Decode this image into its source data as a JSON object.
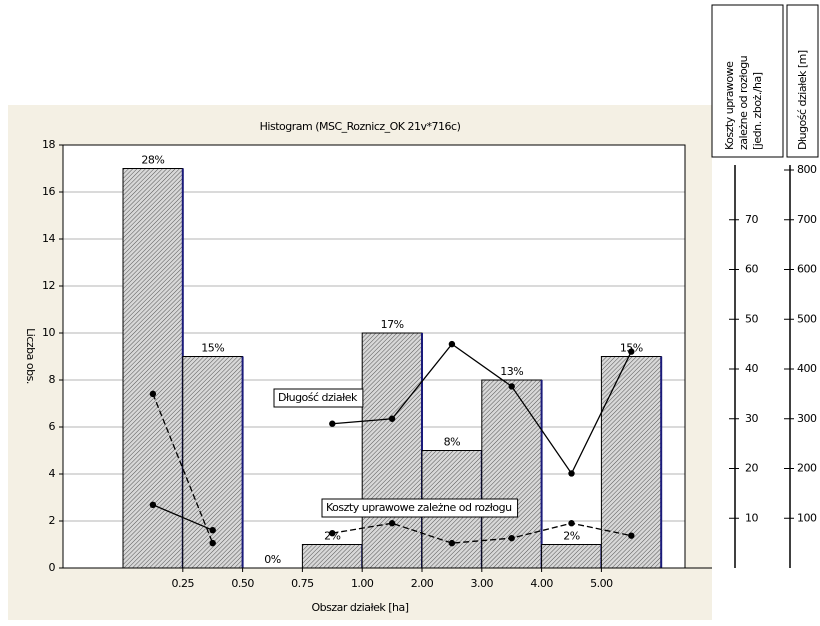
{
  "chart_data": {
    "type": "histogram",
    "title": "Histogram (MSC_Roznicz_OK 21v*716c)",
    "x_label": "Obszar działek [ha]",
    "y_label": "Liczba obs.",
    "bins": [
      null,
      "0.25",
      "0.50",
      "0.75",
      "1.00",
      "2.00",
      "3.00",
      "4.00",
      "5.00",
      null
    ],
    "values": [
      17,
      9,
      0,
      1,
      10,
      5,
      8,
      1,
      9
    ],
    "value_labels": [
      "28%",
      "15%",
      "0%",
      "2%",
      "17%",
      "8%",
      "13%",
      "2%",
      "15%"
    ],
    "color": "#8c8c8c",
    "ylim": [
      0,
      18
    ],
    "yticks": [
      0,
      2,
      4,
      6,
      8,
      10,
      12,
      14,
      16,
      18
    ],
    "grid": true,
    "y2_label": [
      "Koszty uprawowe",
      "zależne od rozłogu",
      "[jedn. zboż./ha]"
    ],
    "y2lim": [
      0,
      80
    ],
    "y2ticks": [
      10,
      20,
      30,
      40,
      50,
      60,
      70
    ],
    "y3_label": "Długość działek [m]",
    "y3lim": [
      0,
      800
    ],
    "y3ticks": [
      100,
      200,
      300,
      400,
      500,
      600,
      700,
      800
    ],
    "series": [
      {
        "name": "Koszty uprawowe zależne od rozłogu",
        "color": "#000000",
        "axis": "y2",
        "line_style": "dashed",
        "values": [
          35,
          5,
          null,
          7,
          9,
          5,
          6,
          9,
          6.5
        ]
      },
      {
        "name": "Długość działek",
        "color": "#000000",
        "axis": "y3",
        "line_style": "solid",
        "values": [
          127,
          76,
          null,
          290,
          300,
          450,
          365,
          190,
          435
        ]
      }
    ]
  }
}
